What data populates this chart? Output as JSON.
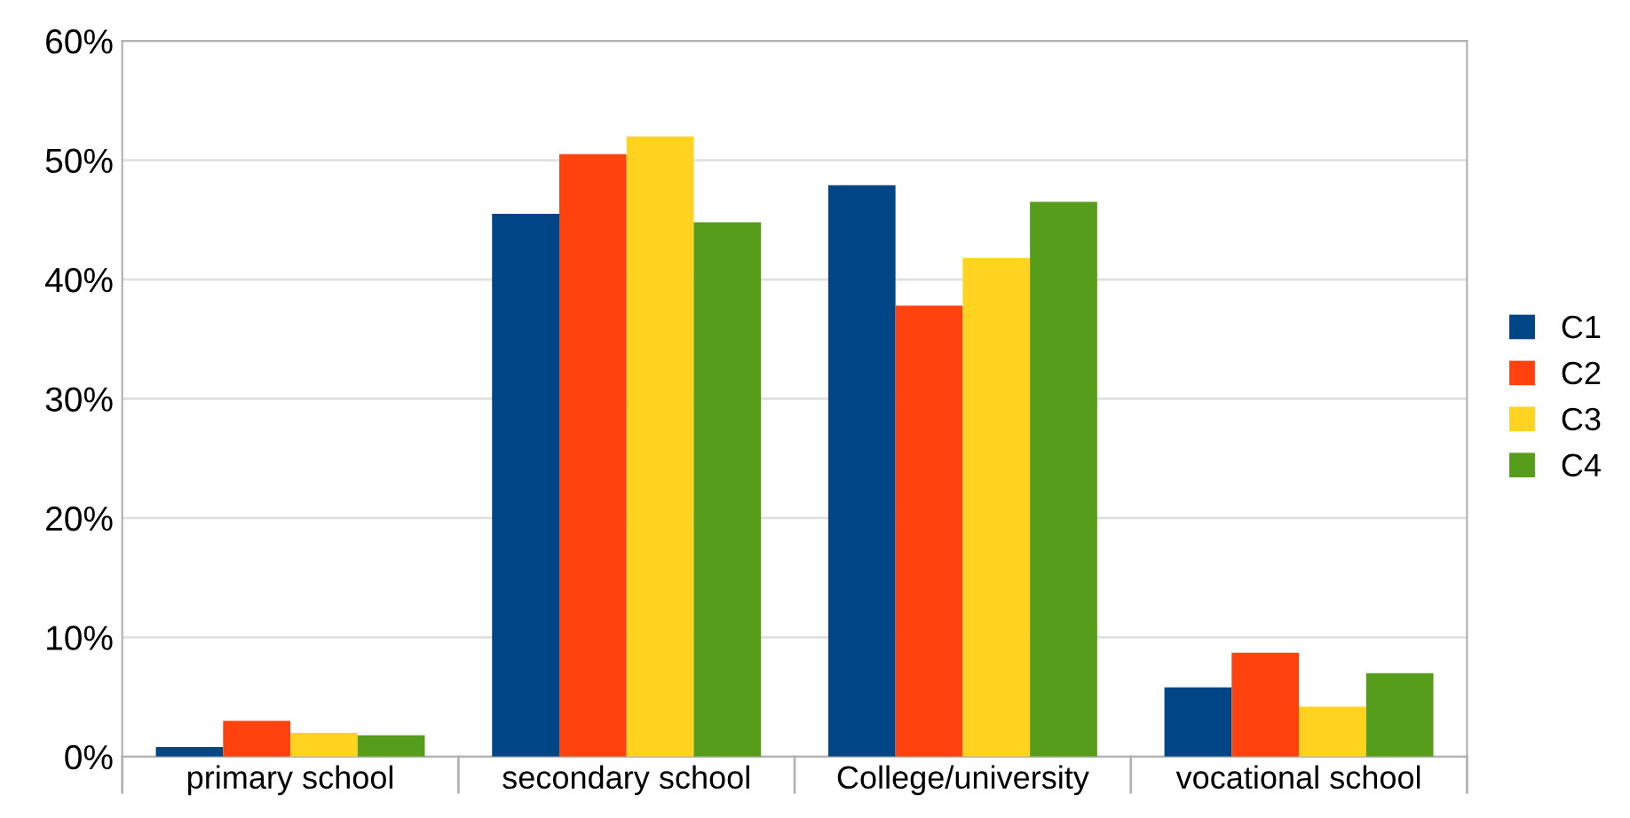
{
  "chart_data": {
    "type": "bar",
    "categories": [
      "primary school",
      "secondary school",
      "College/university",
      "vocational school"
    ],
    "series": [
      {
        "name": "C1",
        "color": "#004586",
        "values": [
          0.8,
          45.5,
          47.9,
          5.8
        ]
      },
      {
        "name": "C2",
        "color": "#ff420e",
        "values": [
          3.0,
          50.5,
          37.8,
          8.7
        ]
      },
      {
        "name": "C3",
        "color": "#ffd320",
        "values": [
          2.0,
          52.0,
          41.8,
          4.2
        ]
      },
      {
        "name": "C4",
        "color": "#579d1c",
        "values": [
          1.8,
          44.8,
          46.5,
          7.0
        ]
      }
    ],
    "ylim": [
      0,
      60
    ],
    "yticks": [
      {
        "value": 0,
        "label": "0%"
      },
      {
        "value": 10,
        "label": "10%"
      },
      {
        "value": 20,
        "label": "20%"
      },
      {
        "value": 30,
        "label": "30%"
      },
      {
        "value": 40,
        "label": "40%"
      },
      {
        "value": 50,
        "label": "50%"
      },
      {
        "value": 60,
        "label": "60%"
      }
    ],
    "grid": "y",
    "legend": "right"
  }
}
